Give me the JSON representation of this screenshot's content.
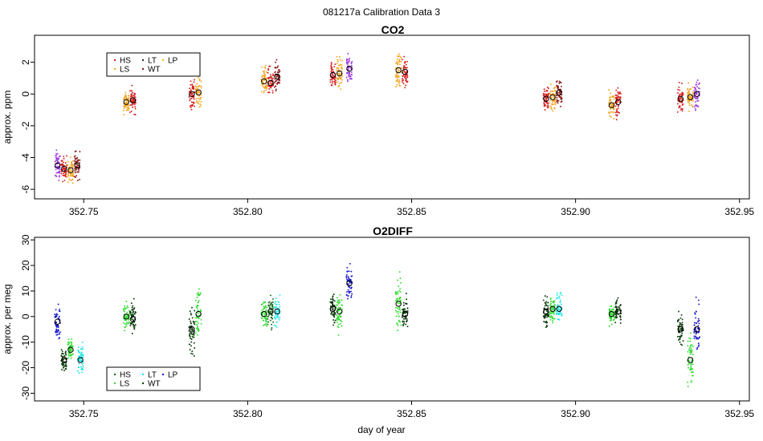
{
  "page": {
    "super_title": "081217a   Calibration Data 3",
    "xlabel": "day of year"
  },
  "chart_data": [
    {
      "type": "scatter",
      "title": "CO2",
      "ylabel": "approx. ppm",
      "xlim": [
        352.735,
        352.953
      ],
      "ylim": [
        -6.6,
        3.7
      ],
      "x_ticks": [
        "352.75",
        "352.80",
        "352.85",
        "352.90",
        "352.95"
      ],
      "y_ticks": [
        "-6",
        "-4",
        "-2",
        "0",
        "2"
      ],
      "legend": {
        "position": "top-left",
        "labels": [
          "HS",
          "LS",
          "LT",
          "WT",
          "LP"
        ]
      },
      "series": [
        {
          "name": "HS",
          "color": "#d62020"
        },
        {
          "name": "LS",
          "color": "#f5a623"
        },
        {
          "name": "LT",
          "color": "#2a2a2a"
        },
        {
          "name": "WT",
          "color": "#8b1a1a"
        },
        {
          "name": "LP",
          "color": "#f0b420"
        }
      ],
      "clusters": [
        {
          "x": 352.742,
          "y": -4.5,
          "spread": 0.6,
          "series": "LP_purple",
          "color": "#a040e0"
        },
        {
          "x": 352.744,
          "y": -4.7,
          "spread": 0.5,
          "series": "HS",
          "color": "#d62020"
        },
        {
          "x": 352.746,
          "y": -4.8,
          "spread": 0.5,
          "series": "LS",
          "color": "#f5a623"
        },
        {
          "x": 352.748,
          "y": -4.5,
          "spread": 0.6,
          "series": "WT",
          "color": "#8b1a1a"
        },
        {
          "x": 352.763,
          "y": -0.5,
          "spread": 0.5,
          "series": "LS",
          "color": "#f5a623"
        },
        {
          "x": 352.765,
          "y": -0.4,
          "spread": 0.5,
          "series": "HS",
          "color": "#d62020"
        },
        {
          "x": 352.783,
          "y": 0.0,
          "spread": 0.7,
          "series": "HS",
          "color": "#d62020"
        },
        {
          "x": 352.785,
          "y": 0.1,
          "spread": 0.6,
          "series": "LS",
          "color": "#f5a623"
        },
        {
          "x": 352.805,
          "y": 0.8,
          "spread": 0.6,
          "series": "LS",
          "color": "#f5a623"
        },
        {
          "x": 352.807,
          "y": 0.7,
          "spread": 0.6,
          "series": "HS",
          "color": "#d62020"
        },
        {
          "x": 352.809,
          "y": 1.1,
          "spread": 0.6,
          "series": "WT",
          "color": "#8b1a1a"
        },
        {
          "x": 352.826,
          "y": 1.2,
          "spread": 0.5,
          "series": "HS",
          "color": "#d62020"
        },
        {
          "x": 352.828,
          "y": 1.3,
          "spread": 0.6,
          "series": "LS",
          "color": "#f5a623"
        },
        {
          "x": 352.831,
          "y": 1.6,
          "spread": 0.6,
          "series": "LP_purple",
          "color": "#a040e0"
        },
        {
          "x": 352.846,
          "y": 1.5,
          "spread": 0.7,
          "series": "LS",
          "color": "#f5a623"
        },
        {
          "x": 352.848,
          "y": 1.4,
          "spread": 0.6,
          "series": "HS",
          "color": "#d62020"
        },
        {
          "x": 352.891,
          "y": -0.3,
          "spread": 0.6,
          "series": "HS",
          "color": "#d62020"
        },
        {
          "x": 352.893,
          "y": -0.2,
          "spread": 0.6,
          "series": "LS",
          "color": "#f5a623"
        },
        {
          "x": 352.895,
          "y": 0.1,
          "spread": 0.6,
          "series": "WT",
          "color": "#8b1a1a"
        },
        {
          "x": 352.911,
          "y": -0.7,
          "spread": 0.6,
          "series": "LS",
          "color": "#f5a623"
        },
        {
          "x": 352.913,
          "y": -0.5,
          "spread": 0.6,
          "series": "HS",
          "color": "#d62020"
        },
        {
          "x": 352.932,
          "y": -0.3,
          "spread": 0.5,
          "series": "HS",
          "color": "#d62020"
        },
        {
          "x": 352.935,
          "y": -0.2,
          "spread": 0.5,
          "series": "LS",
          "color": "#f5a623"
        },
        {
          "x": 352.937,
          "y": 0.0,
          "spread": 0.6,
          "series": "LP_purple",
          "color": "#a040e0"
        }
      ]
    },
    {
      "type": "scatter",
      "title": "O2DIFF",
      "ylabel": "approx. per meg",
      "xlim": [
        352.735,
        352.953
      ],
      "ylim": [
        -33,
        31
      ],
      "x_ticks": [
        "352.75",
        "352.80",
        "352.85",
        "352.90",
        "352.95"
      ],
      "y_ticks": [
        "-30",
        "-20",
        "-10",
        "0",
        "10",
        "20",
        "30"
      ],
      "legend": {
        "position": "bottom-left",
        "labels": [
          "HS",
          "LS",
          "LT",
          "WT",
          "LP"
        ]
      },
      "series": [
        {
          "name": "HS",
          "color": "#1a6b1a"
        },
        {
          "name": "LS",
          "color": "#33dd33"
        },
        {
          "name": "LT",
          "color": "#22e5e5"
        },
        {
          "name": "WT",
          "color": "#0a3a0a"
        },
        {
          "name": "LP",
          "color": "#1a1acc"
        }
      ],
      "clusters": [
        {
          "x": 352.742,
          "y": -2,
          "spread": 4,
          "series": "LP",
          "color": "#1a1acc"
        },
        {
          "x": 352.744,
          "y": -17,
          "spread": 3,
          "series": "WT",
          "color": "#0a3a0a"
        },
        {
          "x": 352.746,
          "y": -13,
          "spread": 3,
          "series": "LS",
          "color": "#33dd33"
        },
        {
          "x": 352.749,
          "y": -17,
          "spread": 4,
          "series": "LT",
          "color": "#22e5e5"
        },
        {
          "x": 352.763,
          "y": 0,
          "spread": 3,
          "series": "LS",
          "color": "#33dd33"
        },
        {
          "x": 352.765,
          "y": -1,
          "spread": 4,
          "series": "WT",
          "color": "#0a3a0a"
        },
        {
          "x": 352.783,
          "y": -5,
          "spread": 6,
          "series": "WT",
          "color": "#0a3a0a"
        },
        {
          "x": 352.785,
          "y": 1,
          "spread": 7,
          "series": "LS",
          "color": "#33dd33"
        },
        {
          "x": 352.805,
          "y": 1,
          "spread": 4,
          "series": "LS",
          "color": "#33dd33"
        },
        {
          "x": 352.807,
          "y": 2,
          "spread": 4,
          "series": "HS",
          "color": "#1a6b1a"
        },
        {
          "x": 352.809,
          "y": 2,
          "spread": 4,
          "series": "LT",
          "color": "#22e5e5"
        },
        {
          "x": 352.826,
          "y": 3,
          "spread": 4,
          "series": "WT",
          "color": "#0a3a0a"
        },
        {
          "x": 352.828,
          "y": 2,
          "spread": 5,
          "series": "LS",
          "color": "#33dd33"
        },
        {
          "x": 352.831,
          "y": 13,
          "spread": 4,
          "series": "LP",
          "color": "#1a1acc"
        },
        {
          "x": 352.846,
          "y": 5,
          "spread": 7,
          "series": "LS",
          "color": "#33dd33"
        },
        {
          "x": 352.848,
          "y": 1,
          "spread": 4,
          "series": "WT",
          "color": "#0a3a0a"
        },
        {
          "x": 352.891,
          "y": 2,
          "spread": 4,
          "series": "WT",
          "color": "#0a3a0a"
        },
        {
          "x": 352.893,
          "y": 3,
          "spread": 4,
          "series": "LS",
          "color": "#33dd33"
        },
        {
          "x": 352.895,
          "y": 3,
          "spread": 4,
          "series": "LT",
          "color": "#22e5e5"
        },
        {
          "x": 352.911,
          "y": 1,
          "spread": 3,
          "series": "LS",
          "color": "#33dd33"
        },
        {
          "x": 352.913,
          "y": 2,
          "spread": 3,
          "series": "WT",
          "color": "#0a3a0a"
        },
        {
          "x": 352.932,
          "y": -5,
          "spread": 4,
          "series": "WT",
          "color": "#0a3a0a"
        },
        {
          "x": 352.935,
          "y": -17,
          "spread": 7,
          "series": "LS",
          "color": "#33dd33"
        },
        {
          "x": 352.937,
          "y": -5,
          "spread": 6,
          "series": "LP",
          "color": "#1a1acc"
        }
      ]
    }
  ]
}
